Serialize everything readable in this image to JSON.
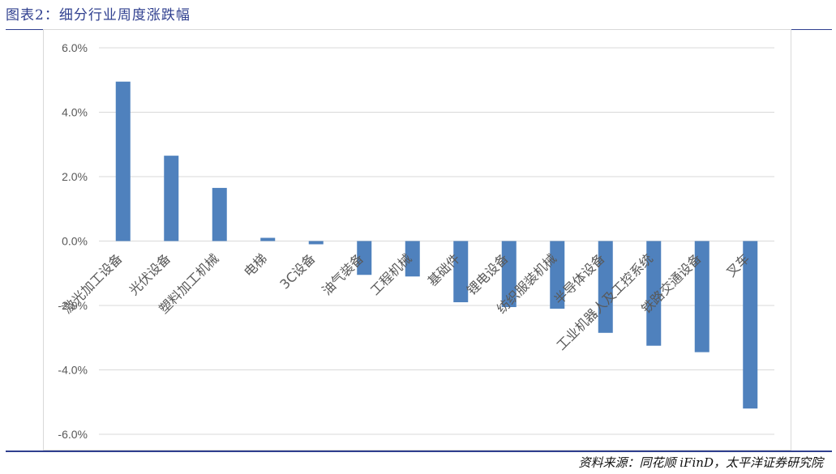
{
  "header": {
    "title": "图表2：细分行业周度涨跌幅"
  },
  "footer": {
    "source": "资料来源：同花顺 iFinD，太平洋证券研究院"
  },
  "colors": {
    "bar": "#4f81bd",
    "grid": "#d9d9d9",
    "accent": "#2f3f8f"
  },
  "chart_data": {
    "type": "bar",
    "title": "",
    "xlabel": "",
    "ylabel": "",
    "ylim": [
      -0.06,
      0.06
    ],
    "yticks": [
      0.06,
      0.04,
      0.02,
      0.0,
      -0.02,
      -0.04,
      -0.06
    ],
    "ytick_labels": [
      "6.0%",
      "4.0%",
      "2.0%",
      "0.0%",
      "-2.0%",
      "-4.0%",
      "-6.0%"
    ],
    "grid": true,
    "categories": [
      "激光加工设备",
      "光伏设备",
      "塑料加工机械",
      "电梯",
      "3C设备",
      "油气装备",
      "工程机械",
      "基础件",
      "锂电设备",
      "纺织服装机械",
      "半导体设备",
      "工业机器人及工控系统",
      "铁路交通设备",
      "叉车"
    ],
    "values": [
      0.0495,
      0.0265,
      0.0165,
      0.001,
      -0.001,
      -0.0105,
      -0.011,
      -0.019,
      -0.0205,
      -0.021,
      -0.0285,
      -0.0325,
      -0.0345,
      -0.052
    ]
  }
}
